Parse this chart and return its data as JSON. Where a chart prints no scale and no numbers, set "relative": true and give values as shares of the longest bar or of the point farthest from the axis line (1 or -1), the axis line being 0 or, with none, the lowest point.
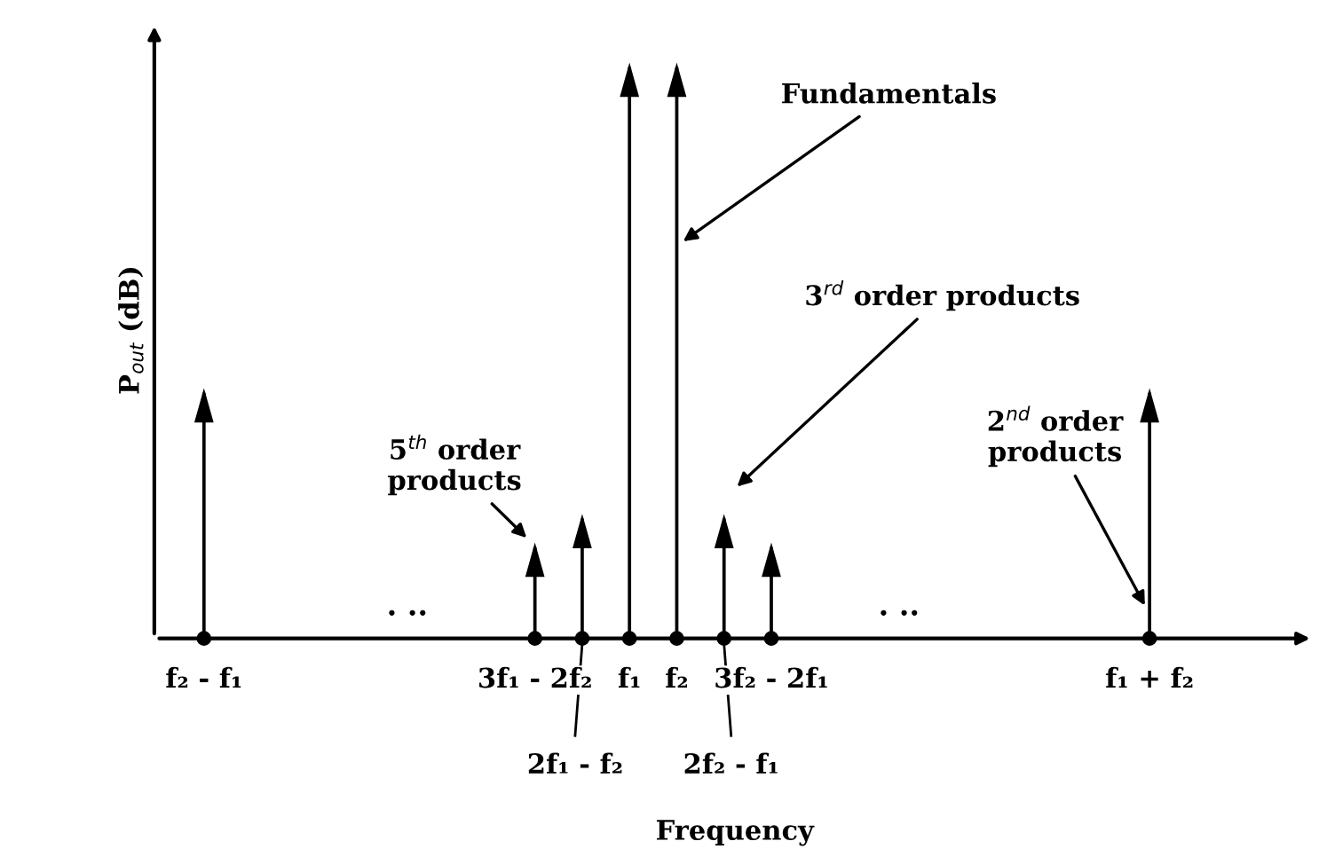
{
  "chart_data": {
    "type": "bar",
    "relative": true,
    "xlabel": "Frequency",
    "ylabel": "P$_{out}$ (dB)",
    "categories": [
      "f₂ - f₁",
      null,
      null,
      null,
      null,
      null,
      null,
      "3f₁ - 2f₂",
      null,
      "f₁",
      "f₂",
      null,
      "3f₂ - 2f₁",
      null,
      null,
      null,
      null,
      null,
      null,
      null,
      "f₁ + f₂",
      null,
      null,
      null
    ],
    "values": [
      0.43,
      null,
      null,
      null,
      null,
      null,
      null,
      0.16,
      0.21,
      1,
      1,
      0.21,
      0.16,
      null,
      null,
      null,
      null,
      null,
      null,
      null,
      0.43,
      null,
      null,
      null
    ],
    "color": "#000000",
    "annotations": [
      "Fundamentals",
      "3$^{rd}$ order products",
      "5$^{th}$ order\nproducts",
      "2$^{nd}$ order\nproducts",
      ". ..",
      ". ..",
      "2f₁ - f₂",
      "2f₂ - f₁"
    ]
  }
}
